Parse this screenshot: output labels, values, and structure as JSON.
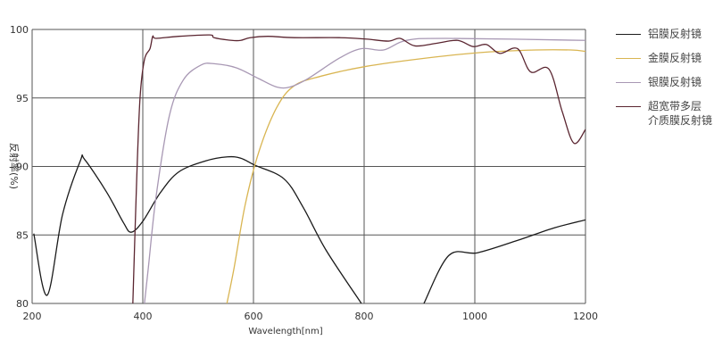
{
  "chart_data": {
    "type": "line",
    "title": "",
    "xlabel": "Wavelength[nm]",
    "ylabel": "反射率(%)",
    "xlim": [
      200,
      1200
    ],
    "ylim": [
      80,
      100
    ],
    "xticks": [
      200,
      400,
      600,
      800,
      1000,
      1200
    ],
    "yticks": [
      80,
      85,
      90,
      95,
      100
    ],
    "grid": true,
    "legend_position": "right",
    "series": [
      {
        "name": "铝膜反射镜",
        "color": "#1a1a1a",
        "segments": [
          [
            [
              203,
              85.1
            ],
            [
              227,
              80.6
            ],
            [
              255,
              86.5
            ],
            [
              287,
              90.4
            ],
            [
              295,
              90.5
            ],
            [
              335,
              88.1
            ],
            [
              365,
              85.9
            ],
            [
              379,
              85.2
            ],
            [
              400,
              86.0
            ],
            [
              432,
              88.1
            ],
            [
              465,
              89.6
            ],
            [
              513,
              90.4
            ],
            [
              553,
              90.7
            ],
            [
              577,
              90.6
            ],
            [
              602,
              90.1
            ],
            [
              655,
              89.1
            ],
            [
              690,
              87.0
            ],
            [
              731,
              83.9
            ],
            [
              795,
              80
            ]
          ],
          [
            [
              908,
              80
            ],
            [
              953,
              83.5
            ],
            [
              1005,
              83.7
            ],
            [
              1077,
              84.6
            ],
            [
              1142,
              85.5
            ],
            [
              1200,
              86.1
            ]
          ]
        ]
      },
      {
        "name": "金膜反射镜",
        "color": "#d9b552",
        "segments": [
          [
            [
              552,
              80
            ],
            [
              565,
              82.6
            ],
            [
              585,
              87.2
            ],
            [
              610,
              91.1
            ],
            [
              642,
              94.3
            ],
            [
              674,
              95.9
            ],
            [
              723,
              96.6
            ],
            [
              803,
              97.3
            ],
            [
              900,
              97.85
            ],
            [
              1005,
              98.3
            ],
            [
              1110,
              98.5
            ],
            [
              1174,
              98.5
            ],
            [
              1200,
              98.4
            ]
          ]
        ]
      },
      {
        "name": "银膜反射镜",
        "color": "#a898b4",
        "segments": [
          [
            [
              403,
              80
            ],
            [
              410,
              82.6
            ],
            [
              424,
              87.8
            ],
            [
              448,
              93.7
            ],
            [
              473,
              96.3
            ],
            [
              505,
              97.4
            ],
            [
              529,
              97.5
            ],
            [
              569,
              97.2
            ],
            [
              610,
              96.4
            ],
            [
              642,
              95.8
            ],
            [
              666,
              95.8
            ],
            [
              698,
              96.4
            ],
            [
              755,
              97.9
            ],
            [
              795,
              98.6
            ],
            [
              835,
              98.5
            ],
            [
              876,
              99.2
            ],
            [
              948,
              99.35
            ],
            [
              1200,
              99.2
            ]
          ]
        ]
      },
      {
        "name": "超宽带多层\n介质膜反射镜",
        "color": "#5a2530",
        "segments": [
          [
            [
              382,
              80
            ],
            [
              389,
              89.1
            ],
            [
              395,
              95.0
            ],
            [
              403,
              97.8
            ],
            [
              413,
              98.6
            ],
            [
              418,
              99.5
            ],
            [
              424,
              99.35
            ],
            [
              465,
              99.5
            ],
            [
              521,
              99.6
            ],
            [
              529,
              99.4
            ],
            [
              561,
              99.2
            ],
            [
              577,
              99.2
            ],
            [
              594,
              99.4
            ],
            [
              626,
              99.5
            ],
            [
              674,
              99.4
            ],
            [
              755,
              99.4
            ],
            [
              803,
              99.3
            ],
            [
              844,
              99.15
            ],
            [
              865,
              99.35
            ],
            [
              892,
              98.8
            ],
            [
              932,
              99.0
            ],
            [
              969,
              99.2
            ],
            [
              997,
              98.75
            ],
            [
              1021,
              98.9
            ],
            [
              1045,
              98.25
            ],
            [
              1077,
              98.6
            ],
            [
              1101,
              96.9
            ],
            [
              1134,
              97.1
            ],
            [
              1158,
              94.0
            ],
            [
              1179,
              91.7
            ],
            [
              1200,
              92.7
            ]
          ]
        ]
      }
    ]
  }
}
